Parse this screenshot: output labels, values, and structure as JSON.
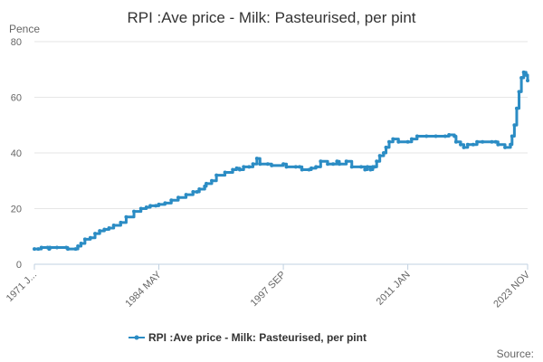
{
  "chart_data": {
    "type": "line",
    "title": "RPI :Ave price - Milk: Pasteurised, per pint",
    "ylabel": "Pence",
    "xlabel": "",
    "ylim": [
      0,
      80
    ],
    "yticks": [
      0,
      20,
      40,
      60,
      80
    ],
    "grid": true,
    "legend_position": "bottom",
    "source_text": "Source:",
    "x_tick_labels": [
      "1971 J...",
      "1984 MAY",
      "1997 SEP",
      "2011 JAN",
      "2023 NOV"
    ],
    "series": [
      {
        "name": "RPI :Ave price - Milk: Pasteurised, per pint",
        "color": "#2b8cc4",
        "points": [
          [
            "1971-01",
            5.5
          ],
          [
            "1971-06",
            5.5
          ],
          [
            "1971-10",
            6
          ],
          [
            "1972-06",
            6
          ],
          [
            "1972-08",
            5.5
          ],
          [
            "1972-09",
            6
          ],
          [
            "1973-06",
            6
          ],
          [
            "1974-06",
            6
          ],
          [
            "1974-08",
            5.5
          ],
          [
            "1975-06",
            5.5
          ],
          [
            "1975-09",
            6.5
          ],
          [
            "1976-01",
            7.5
          ],
          [
            "1976-06",
            9
          ],
          [
            "1977-01",
            9.5
          ],
          [
            "1977-07",
            11
          ],
          [
            "1978-01",
            12
          ],
          [
            "1978-07",
            12.5
          ],
          [
            "1979-01",
            13
          ],
          [
            "1979-07",
            14
          ],
          [
            "1980-04",
            15
          ],
          [
            "1980-11",
            17
          ],
          [
            "1981-09",
            19
          ],
          [
            "1982-06",
            20
          ],
          [
            "1983-01",
            20.5
          ],
          [
            "1983-06",
            21
          ],
          [
            "1984-01",
            21
          ],
          [
            "1984-05",
            21.5
          ],
          [
            "1985-01",
            22
          ],
          [
            "1985-09",
            23
          ],
          [
            "1986-06",
            24
          ],
          [
            "1987-04",
            25
          ],
          [
            "1988-01",
            26
          ],
          [
            "1988-06",
            26
          ],
          [
            "1988-09",
            27
          ],
          [
            "1989-04",
            28
          ],
          [
            "1989-06",
            29
          ],
          [
            "1990-01",
            30
          ],
          [
            "1990-07",
            32
          ],
          [
            "1991-06",
            33
          ],
          [
            "1992-04",
            34
          ],
          [
            "1992-09",
            34.5
          ],
          [
            "1993-01",
            34
          ],
          [
            "1993-06",
            35
          ],
          [
            "1994-01",
            35
          ],
          [
            "1994-06",
            36
          ],
          [
            "1994-11",
            38
          ],
          [
            "1995-03",
            36
          ],
          [
            "1996-01",
            36
          ],
          [
            "1996-06",
            35.5
          ],
          [
            "1997-09",
            36
          ],
          [
            "1998-01",
            35
          ],
          [
            "1999-01",
            35
          ],
          [
            "1999-06",
            35
          ],
          [
            "1999-09",
            34
          ],
          [
            "2000-06",
            34
          ],
          [
            "2000-09",
            34.5
          ],
          [
            "2001-03",
            35
          ],
          [
            "2001-09",
            37
          ],
          [
            "2002-06",
            36
          ],
          [
            "2003-01",
            36
          ],
          [
            "2003-06",
            37
          ],
          [
            "2003-09",
            36
          ],
          [
            "2004-06",
            37
          ],
          [
            "2005-01",
            35
          ],
          [
            "2006-01",
            35
          ],
          [
            "2006-06",
            34
          ],
          [
            "2006-09",
            35
          ],
          [
            "2007-01",
            34
          ],
          [
            "2007-04",
            35
          ],
          [
            "2007-06",
            35
          ],
          [
            "2007-09",
            37
          ],
          [
            "2008-01",
            39
          ],
          [
            "2008-06",
            40
          ],
          [
            "2008-09",
            42
          ],
          [
            "2009-01",
            44
          ],
          [
            "2009-06",
            45
          ],
          [
            "2010-01",
            44
          ],
          [
            "2011-01",
            44
          ],
          [
            "2011-06",
            45
          ],
          [
            "2012-01",
            46
          ],
          [
            "2013-01",
            46
          ],
          [
            "2014-01",
            46
          ],
          [
            "2015-01",
            46
          ],
          [
            "2015-06",
            46.5
          ],
          [
            "2016-01",
            46
          ],
          [
            "2016-03",
            44
          ],
          [
            "2016-09",
            43
          ],
          [
            "2017-01",
            42
          ],
          [
            "2017-06",
            43
          ],
          [
            "2018-01",
            43
          ],
          [
            "2018-06",
            44
          ],
          [
            "2019-01",
            44
          ],
          [
            "2020-01",
            44
          ],
          [
            "2020-06",
            44
          ],
          [
            "2020-09",
            43
          ],
          [
            "2021-06",
            42
          ],
          [
            "2022-01",
            43
          ],
          [
            "2022-03",
            46
          ],
          [
            "2022-06",
            50
          ],
          [
            "2022-09",
            56
          ],
          [
            "2022-12",
            62
          ],
          [
            "2023-03",
            67
          ],
          [
            "2023-06",
            69
          ],
          [
            "2023-09",
            68
          ],
          [
            "2023-11",
            66
          ]
        ]
      }
    ]
  }
}
